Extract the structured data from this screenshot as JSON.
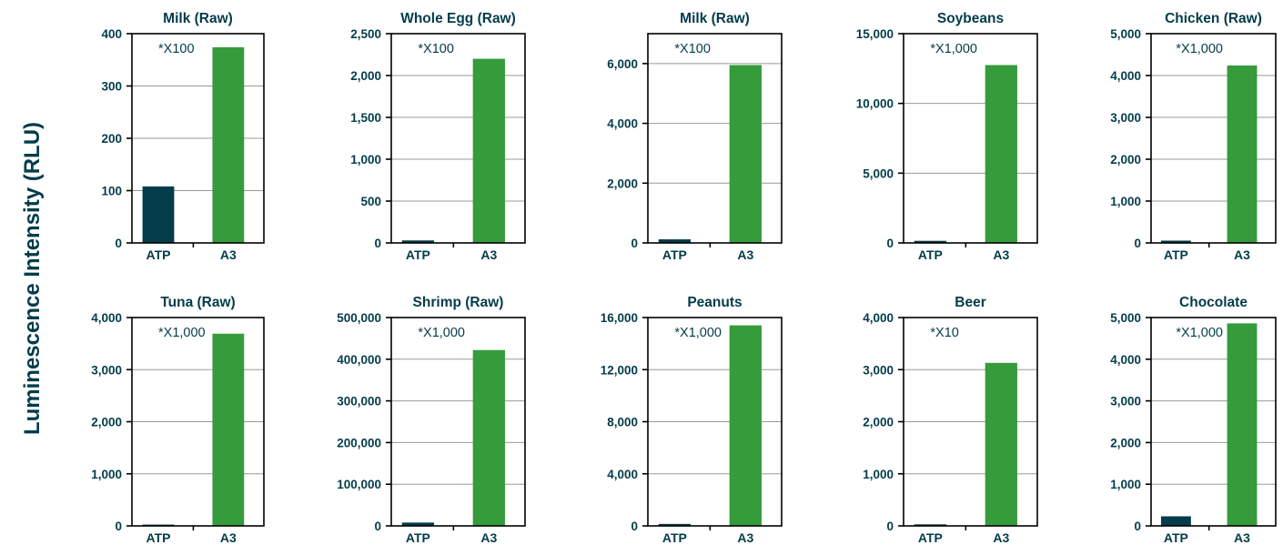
{
  "shared_ylabel": "Luminescence Intensity (RLU)",
  "colors": {
    "atp": "#033c4a",
    "a3": "#359b3b",
    "axis": "#000000",
    "grid": "#999999",
    "text": "#033c4a"
  },
  "chart_data": [
    {
      "type": "bar",
      "title": "Milk (Raw)",
      "annotation": "*X100",
      "categories": [
        "ATP",
        "A3"
      ],
      "values": [
        108,
        374
      ],
      "ylim": [
        0,
        400
      ],
      "yticks": [
        0,
        100,
        200,
        300,
        400
      ],
      "ytick_labels": [
        "0",
        "100",
        "200",
        "300",
        "400"
      ],
      "grid": true
    },
    {
      "type": "bar",
      "title": "Whole Egg (Raw)",
      "annotation": "*X100",
      "categories": [
        "ATP",
        "A3"
      ],
      "values": [
        30,
        2200
      ],
      "ylim": [
        0,
        2500
      ],
      "yticks": [
        0,
        500,
        1000,
        1500,
        2000,
        2500
      ],
      "ytick_labels": [
        "0",
        "500",
        "1,000",
        "1,500",
        "2,000",
        "2,500"
      ],
      "grid": true
    },
    {
      "type": "bar",
      "title": "Milk (Raw)",
      "annotation": "*X100",
      "categories": [
        "ATP",
        "A3"
      ],
      "values": [
        120,
        5950
      ],
      "ylim": [
        0,
        7000
      ],
      "yticks": [
        0,
        2000,
        4000,
        6000
      ],
      "ytick_labels": [
        "0",
        "2,000",
        "4,000",
        "6,000"
      ],
      "grid": true
    },
    {
      "type": "bar",
      "title": "Soybeans",
      "annotation": "*X1,000",
      "categories": [
        "ATP",
        "A3"
      ],
      "values": [
        150,
        12750
      ],
      "ylim": [
        0,
        15000
      ],
      "yticks": [
        0,
        5000,
        10000,
        15000
      ],
      "ytick_labels": [
        "0",
        "5,000",
        "10,000",
        "15,000"
      ],
      "grid": true
    },
    {
      "type": "bar",
      "title": "Chicken (Raw)",
      "annotation": "*X1,000",
      "categories": [
        "ATP",
        "A3"
      ],
      "values": [
        55,
        4240
      ],
      "ylim": [
        0,
        5000
      ],
      "yticks": [
        0,
        1000,
        2000,
        3000,
        4000,
        5000
      ],
      "ytick_labels": [
        "0",
        "1,000",
        "2,000",
        "3,000",
        "4,000",
        "5,000"
      ],
      "grid": true
    },
    {
      "type": "bar",
      "title": "Tuna (Raw)",
      "annotation": "*X1,000",
      "categories": [
        "ATP",
        "A3"
      ],
      "values": [
        25,
        3690
      ],
      "ylim": [
        0,
        4000
      ],
      "yticks": [
        0,
        1000,
        2000,
        3000,
        4000
      ],
      "ytick_labels": [
        "0",
        "1,000",
        "2,000",
        "3,000",
        "4,000"
      ],
      "grid": true
    },
    {
      "type": "bar",
      "title": "Shrimp (Raw)",
      "annotation": "*X1,000",
      "categories": [
        "ATP",
        "A3"
      ],
      "values": [
        8000,
        422000
      ],
      "ylim": [
        0,
        500000
      ],
      "yticks": [
        0,
        100000,
        200000,
        300000,
        400000,
        500000
      ],
      "ytick_labels": [
        "0",
        "100,000",
        "200,000",
        "300,000",
        "400,000",
        "500,000"
      ],
      "grid": true
    },
    {
      "type": "bar",
      "title": "Peanuts",
      "annotation": "*X1,000",
      "categories": [
        "ATP",
        "A3"
      ],
      "values": [
        150,
        15400
      ],
      "ylim": [
        0,
        16000
      ],
      "yticks": [
        0,
        4000,
        8000,
        12000,
        16000
      ],
      "ytick_labels": [
        "0",
        "4,000",
        "8,000",
        "12,000",
        "16,000"
      ],
      "grid": true
    },
    {
      "type": "bar",
      "title": "Beer",
      "annotation": "*X10",
      "categories": [
        "ATP",
        "A3"
      ],
      "values": [
        30,
        3130
      ],
      "ylim": [
        0,
        4000
      ],
      "yticks": [
        0,
        1000,
        2000,
        3000,
        4000
      ],
      "ytick_labels": [
        "0",
        "1,000",
        "2,000",
        "3,000",
        "4,000"
      ],
      "grid": true
    },
    {
      "type": "bar",
      "title": "Chocolate",
      "annotation": "*X1,000",
      "categories": [
        "ATP",
        "A3"
      ],
      "values": [
        230,
        4860
      ],
      "ylim": [
        0,
        5000
      ],
      "yticks": [
        0,
        1000,
        2000,
        3000,
        4000,
        5000
      ],
      "ytick_labels": [
        "0",
        "1,000",
        "2,000",
        "3,000",
        "4,000",
        "5,000"
      ],
      "grid": true
    }
  ]
}
